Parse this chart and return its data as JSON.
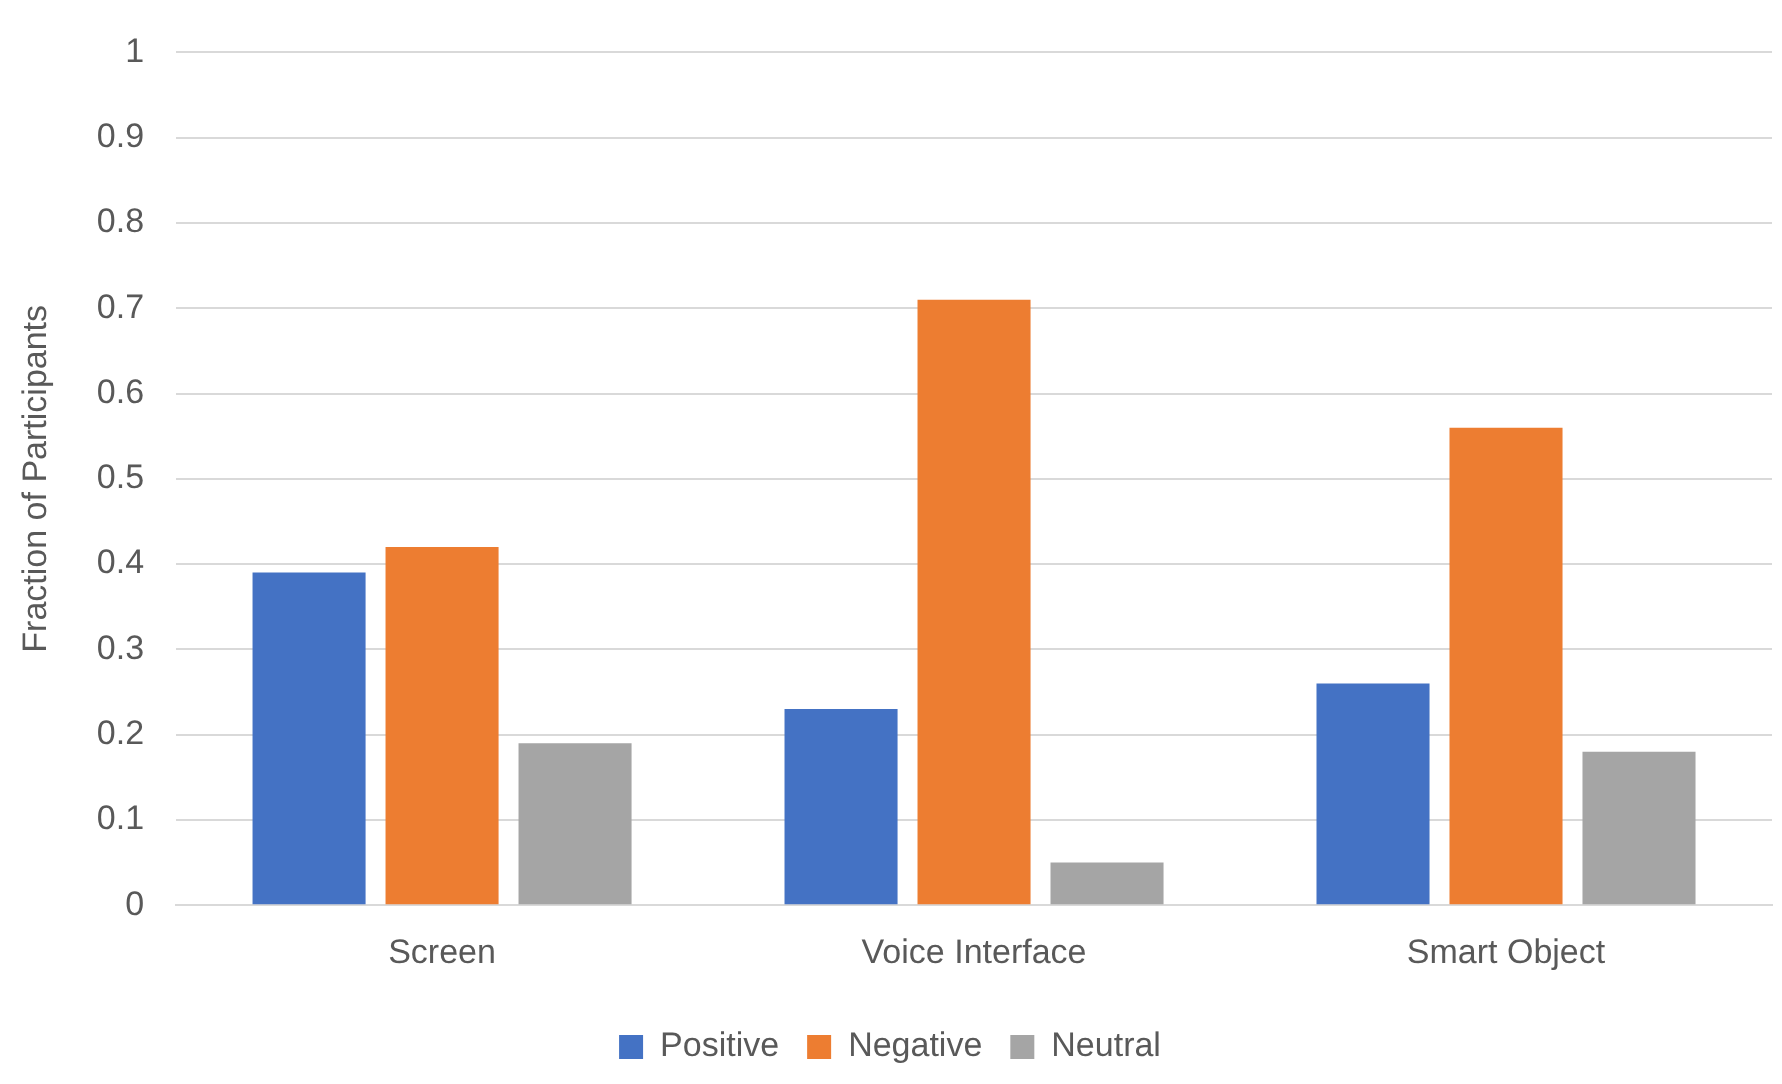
{
  "chart_data": {
    "type": "bar",
    "ylabel": "Fraction of Participants",
    "categories": [
      "Screen",
      "Voice Interface",
      "Smart Object"
    ],
    "series": [
      {
        "name": "Positive",
        "color": "#4472c4",
        "values": [
          0.39,
          0.23,
          0.26
        ]
      },
      {
        "name": "Negative",
        "color": "#ed7d31",
        "values": [
          0.42,
          0.71,
          0.56
        ]
      },
      {
        "name": "Neutral",
        "color": "#a5a5a5",
        "values": [
          0.19,
          0.05,
          0.18
        ]
      }
    ],
    "ylim": [
      0,
      1
    ],
    "yticks": [
      0,
      0.1,
      0.2,
      0.3,
      0.4,
      0.5,
      0.6,
      0.7,
      0.8,
      0.9,
      1
    ],
    "grid": "y",
    "legend": "bottom"
  }
}
